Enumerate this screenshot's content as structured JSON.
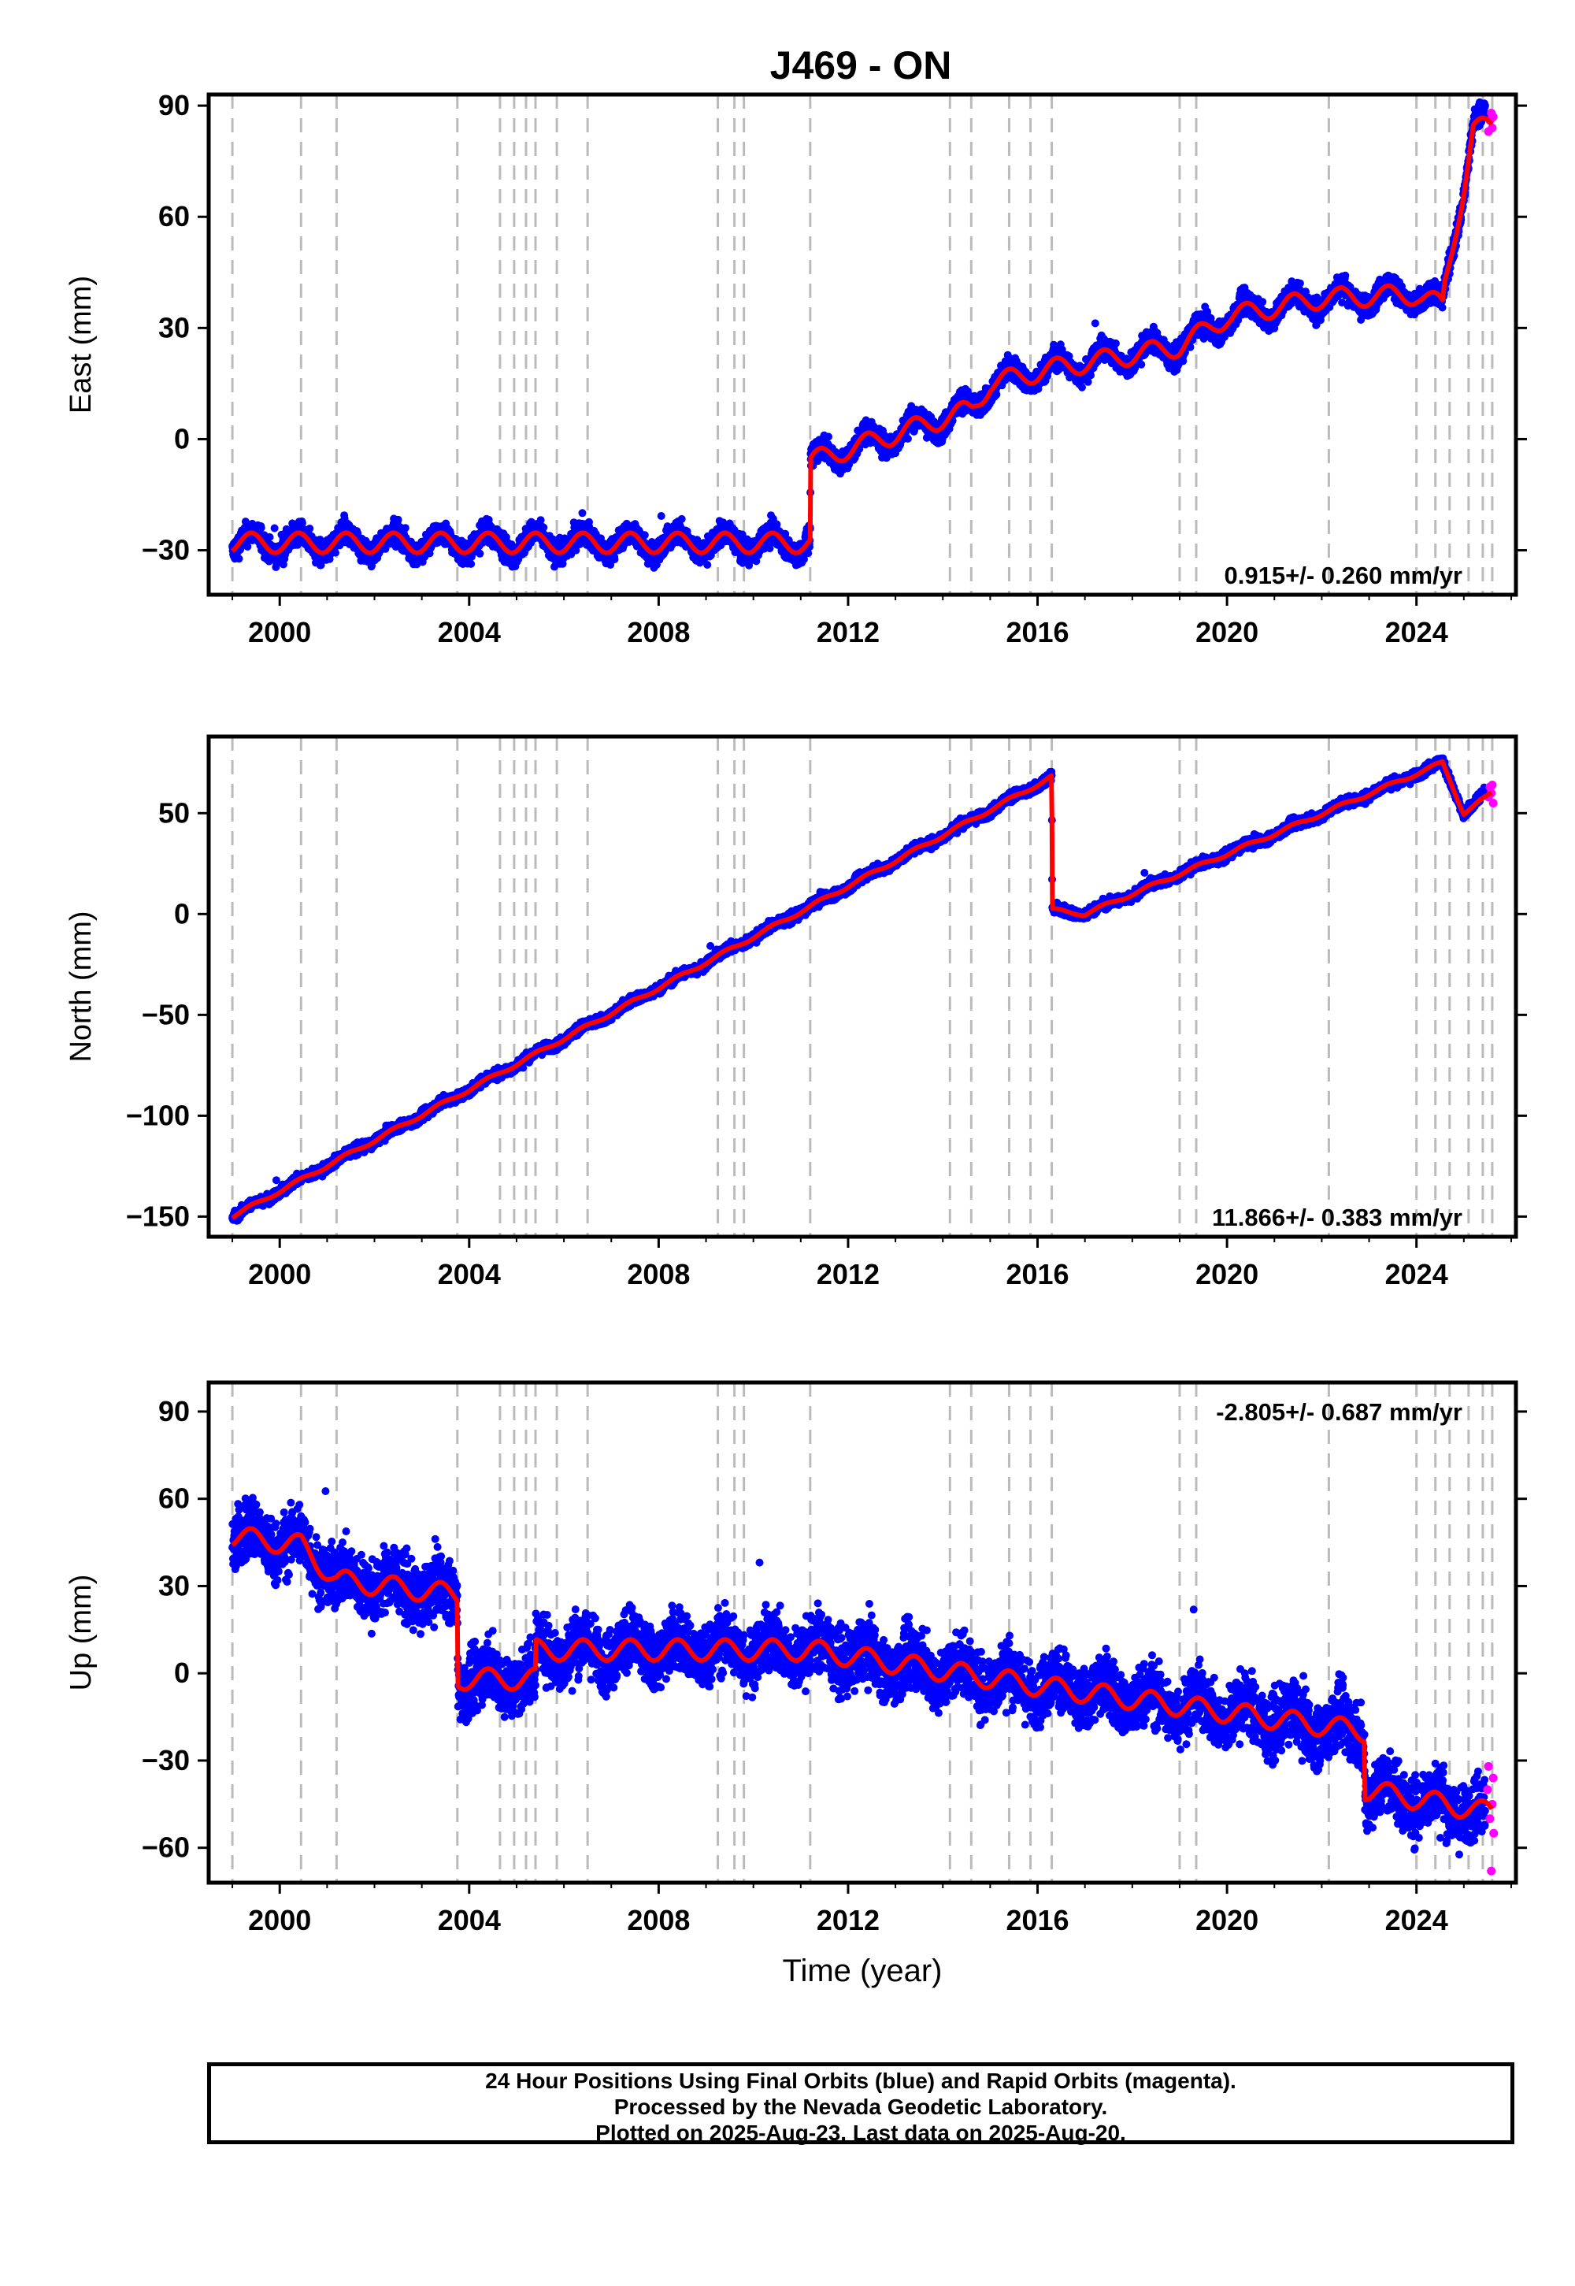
{
  "title": "J469 - ON",
  "colors": {
    "final_orbits": "#0000ff",
    "rapid_orbits": "#ff00ff",
    "model": "#ff0000",
    "event_lines": "#bbbbbb"
  },
  "footer": {
    "line1": "24 Hour Positions Using Final Orbits (blue) and Rapid Orbits (magenta).",
    "line2": "Processed by the Nevada Geodetic Laboratory.",
    "line3": "Plotted on 2025-Aug-23. Last data on 2025-Aug-20."
  },
  "chart_data": [
    {
      "type": "scatter",
      "panel": "east",
      "title": "J469 - ON",
      "xlabel": "",
      "ylabel": "East (mm)",
      "xlim": [
        1998.5,
        2026.1
      ],
      "ylim": [
        -42,
        93
      ],
      "xticks": [
        2000,
        2004,
        2008,
        2012,
        2016,
        2020,
        2024
      ],
      "xtick_labels": [
        "2000",
        "2004",
        "2008",
        "2012",
        "2016",
        "2020",
        "2024"
      ],
      "yticks": [
        -30,
        0,
        30,
        60,
        90
      ],
      "ytick_labels": [
        "−30",
        "0",
        "30",
        "60",
        "90"
      ],
      "rate_label": "0.915+/- 0.260 mm/yr",
      "rate_label_position": "bottom-right",
      "noise_sd": 2.2,
      "seasonal_amp": 3.0,
      "events": [
        1999.0,
        2000.45,
        2001.2,
        2003.75,
        2004.65,
        2004.95,
        2005.2,
        2005.4,
        2005.85,
        2006.5,
        2009.25,
        2009.6,
        2009.8,
        2011.2,
        2014.15,
        2014.6,
        2015.4,
        2015.85,
        2016.3,
        2019.0,
        2019.35,
        2022.15,
        2024.0,
        2024.4,
        2024.7,
        2025.1,
        2025.4,
        2025.6
      ],
      "final_series": {
        "name": "Final Orbits",
        "x": [
          1999.0,
          2011.2,
          2011.21,
          2014.6,
          2015.0,
          2016.3,
          2019.0,
          2020.0,
          2022.0,
          2024.0,
          2024.55,
          2024.6,
          2025.0,
          2025.2,
          2025.45
        ],
        "y": [
          -28,
          -28,
          -6,
          8,
          15,
          19,
          25,
          33,
          38,
          39,
          36,
          42,
          68,
          84,
          86
        ]
      },
      "model_series": {
        "name": "Model",
        "x": [
          1999.0,
          2011.2,
          2011.21,
          2014.6,
          2015.0,
          2016.3,
          2019.0,
          2020.0,
          2022.0,
          2024.0,
          2024.55,
          2024.6,
          2025.0,
          2025.2,
          2025.6
        ],
        "y": [
          -28,
          -28,
          -6,
          8,
          15,
          19,
          25,
          33,
          38,
          39,
          36,
          42,
          68,
          84,
          84
        ]
      },
      "rapid_series": {
        "name": "Rapid Orbits",
        "x": [
          2025.52,
          2025.55,
          2025.58,
          2025.6,
          2025.62
        ],
        "y": [
          83,
          86,
          88,
          84,
          87
        ]
      }
    },
    {
      "type": "scatter",
      "panel": "north",
      "xlabel": "",
      "ylabel": "North (mm)",
      "xlim": [
        1998.5,
        2026.1
      ],
      "ylim": [
        -160,
        88
      ],
      "xticks": [
        2000,
        2004,
        2008,
        2012,
        2016,
        2020,
        2024
      ],
      "xtick_labels": [
        "2000",
        "2004",
        "2008",
        "2012",
        "2016",
        "2020",
        "2024"
      ],
      "yticks": [
        -150,
        -100,
        -50,
        0,
        50
      ],
      "ytick_labels": [
        "−150",
        "−100",
        "−50",
        "0",
        "50"
      ],
      "rate_label": "11.866+/- 0.383 mm/yr",
      "rate_label_position": "bottom-right",
      "noise_sd": 1.8,
      "seasonal_amp": 1.0,
      "events": [
        1999.0,
        2000.45,
        2001.2,
        2003.75,
        2004.65,
        2004.95,
        2005.2,
        2005.4,
        2005.85,
        2006.5,
        2009.25,
        2009.6,
        2009.8,
        2011.2,
        2014.15,
        2014.6,
        2015.4,
        2015.85,
        2016.3,
        2019.0,
        2019.35,
        2022.15,
        2024.0,
        2024.4,
        2024.7,
        2025.1,
        2025.4,
        2025.6
      ],
      "final_series": {
        "name": "Final Orbits",
        "x": [
          1999.0,
          2016.3,
          2016.31,
          2017.0,
          2024.55,
          2025.0,
          2025.45
        ],
        "y": [
          -150,
          68,
          2,
          0,
          75,
          50,
          60
        ]
      },
      "model_series": {
        "name": "Model",
        "x": [
          1999.0,
          2016.3,
          2016.31,
          2017.0,
          2024.55,
          2025.0,
          2025.6
        ],
        "y": [
          -150,
          68,
          2,
          0,
          75,
          50,
          60
        ]
      },
      "rapid_series": {
        "name": "Rapid Orbits",
        "x": [
          2025.52,
          2025.55,
          2025.58,
          2025.6,
          2025.62
        ],
        "y": [
          58,
          63,
          60,
          64,
          55
        ]
      }
    },
    {
      "type": "scatter",
      "panel": "up",
      "xlabel": "Time (year)",
      "ylabel": "Up (mm)",
      "xlim": [
        1998.5,
        2026.1
      ],
      "ylim": [
        -72,
        100
      ],
      "xticks": [
        2000,
        2004,
        2008,
        2012,
        2016,
        2020,
        2024
      ],
      "xtick_labels": [
        "2000",
        "2004",
        "2008",
        "2012",
        "2016",
        "2020",
        "2024"
      ],
      "yticks": [
        -60,
        -30,
        0,
        30,
        60,
        90
      ],
      "ytick_labels": [
        "−60",
        "−30",
        "0",
        "30",
        "60",
        "90"
      ],
      "rate_label": "-2.805+/- 0.687 mm/yr",
      "rate_label_position": "top-right",
      "noise_sd": 7.5,
      "seasonal_amp": 4.0,
      "events": [
        1999.0,
        2000.45,
        2001.2,
        2003.75,
        2004.65,
        2004.95,
        2005.2,
        2005.4,
        2005.85,
        2006.5,
        2009.25,
        2009.6,
        2009.8,
        2011.2,
        2014.15,
        2014.6,
        2015.4,
        2015.85,
        2016.3,
        2019.0,
        2019.35,
        2022.15,
        2024.0,
        2024.4,
        2024.7,
        2025.1,
        2025.4,
        2025.6
      ],
      "final_series": {
        "name": "Final Orbits",
        "x": [
          1999.0,
          2000.45,
          2001.2,
          2003.75,
          2003.76,
          2005.4,
          2005.41,
          2011.2,
          2016.3,
          2022.9,
          2022.91,
          2025.45
        ],
        "y": [
          47,
          44,
          32,
          27,
          -2,
          -2,
          8,
          8,
          -5,
          -20,
          -40,
          -48
        ]
      },
      "model_series": {
        "name": "Model",
        "x": [
          1999.0,
          2000.45,
          2001.2,
          2003.75,
          2003.76,
          2005.4,
          2005.41,
          2011.2,
          2016.3,
          2022.9,
          2022.91,
          2025.6
        ],
        "y": [
          47,
          44,
          32,
          27,
          -2,
          -2,
          8,
          8,
          -5,
          -20,
          -40,
          -48
        ]
      },
      "rapid_series": {
        "name": "Rapid Orbits",
        "x": [
          2025.5,
          2025.52,
          2025.55,
          2025.58,
          2025.6,
          2025.62,
          2025.63
        ],
        "y": [
          -40,
          -32,
          -50,
          -68,
          -45,
          -36,
          -55
        ]
      }
    }
  ]
}
